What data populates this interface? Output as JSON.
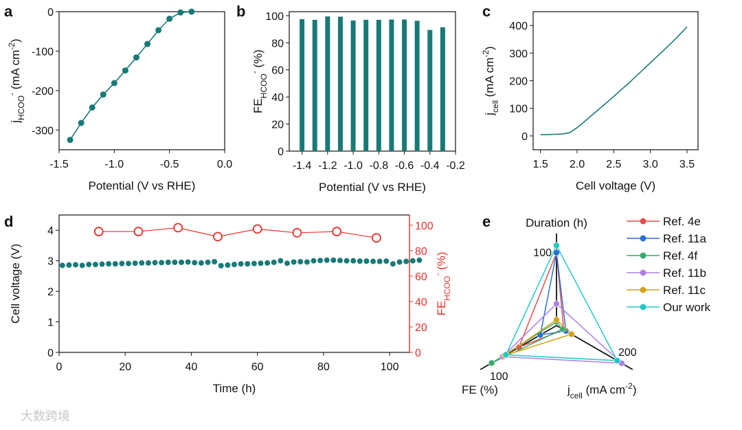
{
  "colors": {
    "teal": "#187a78",
    "red": "#e8312a",
    "axis": "#111111"
  },
  "watermark": "大数跨境",
  "chart_data": [
    {
      "panel": "a",
      "type": "line",
      "xlabel": [
        {
          "t": "Potential (V vs RHE)"
        }
      ],
      "ylabel": [
        {
          "t": "j"
        },
        {
          "t": "HCOO",
          "s": "sub"
        },
        {
          "t": "-",
          "s": "sup"
        },
        {
          "t": " (mA cm"
        },
        {
          "t": "-2",
          "s": "sup"
        },
        {
          "t": ")"
        }
      ],
      "xlim": [
        -1.5,
        0
      ],
      "ylim": [
        -350,
        0
      ],
      "xticks": [
        -1.5,
        -1.0,
        -0.5,
        0.0
      ],
      "xticklabels": [
        "-1.5",
        "-1.0",
        "-0.5",
        "0.0"
      ],
      "yticks": [
        -300,
        -200,
        -100,
        0
      ],
      "yticklabels": [
        "-300",
        "-200",
        "-100",
        "0"
      ],
      "x": [
        -1.4,
        -1.3,
        -1.2,
        -1.1,
        -1.0,
        -0.9,
        -0.8,
        -0.7,
        -0.6,
        -0.5,
        -0.4,
        -0.3
      ],
      "y": [
        -325,
        -282,
        -243,
        -210,
        -181,
        -149,
        -116,
        -82,
        -47,
        -18,
        -2,
        0
      ]
    },
    {
      "panel": "b",
      "type": "bar",
      "xlabel": [
        {
          "t": "Potential (V vs RHE)"
        }
      ],
      "ylabel": [
        {
          "t": "FE"
        },
        {
          "t": "HCOO",
          "s": "sub"
        },
        {
          "t": "-",
          "s": "sup"
        },
        {
          "t": " (%)"
        }
      ],
      "xlim": [
        -1.5,
        -0.2
      ],
      "ylim": [
        0,
        103
      ],
      "xticks": [
        -1.4,
        -1.2,
        -1.0,
        -0.8,
        -0.6,
        -0.4,
        -0.2
      ],
      "xticklabels": [
        "-1.4",
        "-1.2",
        "-1.0",
        "-0.8",
        "-0.6",
        "-0.4",
        "-0.2"
      ],
      "yticks": [
        0,
        20,
        40,
        60,
        80,
        100
      ],
      "yticklabels": [
        "0",
        "20",
        "40",
        "60",
        "80",
        "100"
      ],
      "x": [
        -1.4,
        -1.3,
        -1.2,
        -1.1,
        -1.0,
        -0.9,
        -0.8,
        -0.7,
        -0.6,
        -0.5,
        -0.4,
        -0.3
      ],
      "values": [
        97.5,
        97,
        99.5,
        99.3,
        96.5,
        97,
        97,
        97.2,
        97.2,
        96.3,
        89.5,
        91.5
      ]
    },
    {
      "panel": "c",
      "type": "line",
      "xlabel": [
        {
          "t": "Cell voltage (V)"
        }
      ],
      "ylabel": [
        {
          "t": "j"
        },
        {
          "t": "cell",
          "s": "sub"
        },
        {
          "t": " (mA cm"
        },
        {
          "t": "-2",
          "s": "sup"
        },
        {
          "t": ")"
        }
      ],
      "xlim": [
        1.4,
        3.65
      ],
      "ylim": [
        -50,
        450
      ],
      "xticks": [
        1.5,
        2.0,
        2.5,
        3.0,
        3.5
      ],
      "xticklabels": [
        "1.5",
        "2.0",
        "2.5",
        "3.0",
        "3.5"
      ],
      "yticks": [
        0,
        100,
        200,
        300,
        400
      ],
      "yticklabels": [
        "0",
        "100",
        "200",
        "300",
        "400"
      ],
      "x": [
        1.5,
        1.6,
        1.7,
        1.8,
        1.9,
        2.0,
        2.1,
        2.2,
        2.3,
        2.4,
        2.5,
        2.6,
        2.7,
        2.8,
        2.9,
        3.0,
        3.1,
        3.2,
        3.3,
        3.4,
        3.5
      ],
      "y": [
        5,
        5,
        6,
        7,
        12,
        30,
        52,
        75,
        97,
        120,
        143,
        167,
        190,
        215,
        240,
        265,
        290,
        315,
        340,
        367,
        395
      ]
    },
    {
      "panel": "d",
      "type": "scatter",
      "xlabel": [
        {
          "t": "Time (h)"
        }
      ],
      "ylabel": [
        {
          "t": "Cell voltage (V)"
        }
      ],
      "ylabel_right": [
        {
          "t": "FE"
        },
        {
          "t": "HCOO",
          "s": "sub"
        },
        {
          "t": "-",
          "s": "sup"
        },
        {
          "t": " (%)"
        }
      ],
      "xlim": [
        0,
        106
      ],
      "ylim": [
        0,
        4.5
      ],
      "ylim_right": [
        0,
        108
      ],
      "xticks": [
        0,
        20,
        40,
        60,
        80,
        100
      ],
      "xticklabels": [
        "0",
        "20",
        "40",
        "60",
        "80",
        "100"
      ],
      "yticks": [
        0,
        1,
        2,
        3,
        4
      ],
      "yticklabels": [
        "0",
        "1",
        "2",
        "3",
        "4"
      ],
      "yticks_right": [
        0,
        20,
        40,
        60,
        80,
        100
      ],
      "yticklabels_right": [
        "0",
        "20",
        "40",
        "60",
        "80",
        "100"
      ],
      "series": [
        {
          "name": "Cell voltage",
          "axis": "left",
          "x": [
            1,
            3,
            5,
            7,
            9,
            11,
            13,
            15,
            17,
            19,
            21,
            23,
            25,
            27,
            29,
            31,
            33,
            35,
            37,
            39,
            41,
            43,
            45,
            47,
            49,
            51,
            53,
            55,
            57,
            59,
            61,
            63,
            65,
            67,
            69,
            71,
            73,
            75,
            77,
            79,
            81,
            83,
            85,
            87,
            89,
            91,
            93,
            95,
            97,
            99,
            101,
            103,
            105,
            107,
            109
          ],
          "y": [
            2.85,
            2.86,
            2.87,
            2.85,
            2.88,
            2.88,
            2.89,
            2.9,
            2.9,
            2.91,
            2.91,
            2.92,
            2.93,
            2.93,
            2.94,
            2.94,
            2.95,
            2.95,
            2.95,
            2.96,
            2.94,
            2.93,
            2.95,
            2.97,
            2.84,
            2.86,
            2.88,
            2.9,
            2.9,
            2.91,
            2.92,
            2.93,
            2.95,
            3.0,
            2.92,
            2.96,
            2.97,
            2.96,
            3.0,
            3.01,
            3.02,
            3.02,
            3.01,
            3.0,
            3.0,
            2.99,
            2.99,
            2.98,
            2.98,
            2.99,
            2.9,
            2.96,
            2.98,
            3.0,
            3.02
          ]
        },
        {
          "name": "FE",
          "axis": "right",
          "x": [
            12,
            24,
            36,
            48,
            60,
            72,
            84,
            96
          ],
          "y": [
            95,
            95,
            98,
            91,
            97,
            94,
            95,
            90
          ]
        }
      ]
    },
    {
      "panel": "e",
      "type": "radar",
      "axes": [
        {
          "name": "Duration (h)",
          "tick": "100",
          "tick_value": 100
        },
        {
          "name": [
            {
              "t": "FE (%)"
            }
          ],
          "tick": "100",
          "tick_value": 100
        },
        {
          "name": [
            {
              "t": "j"
            },
            {
              "t": "cell",
              "s": "sub"
            },
            {
              "t": " (mA cm"
            },
            {
              "t": "-2",
              "s": "sup"
            },
            {
              "t": ")"
            }
          ],
          "tick": "200",
          "tick_value": 200
        }
      ],
      "series": [
        {
          "name": "Ref. 4e",
          "color": "#e84c4c",
          "values": [
            100,
            58,
            24
          ]
        },
        {
          "name": "Ref. 11a",
          "color": "#2a6fd6",
          "values": [
            100,
            25,
            31
          ]
        },
        {
          "name": "Ref. 4f",
          "color": "#3aaa6a",
          "values": [
            5,
            100,
            20
          ]
        },
        {
          "name": "Ref. 11b",
          "color": "#b07fe0",
          "values": [
            30,
            83,
            215
          ]
        },
        {
          "name": "Ref. 11c",
          "color": "#d4a017",
          "values": [
            8,
            80,
            49
          ]
        },
        {
          "name": "Our work",
          "color": "#22c8c8",
          "values": [
            110,
            78,
            200
          ]
        }
      ],
      "legend": "top-right"
    }
  ]
}
